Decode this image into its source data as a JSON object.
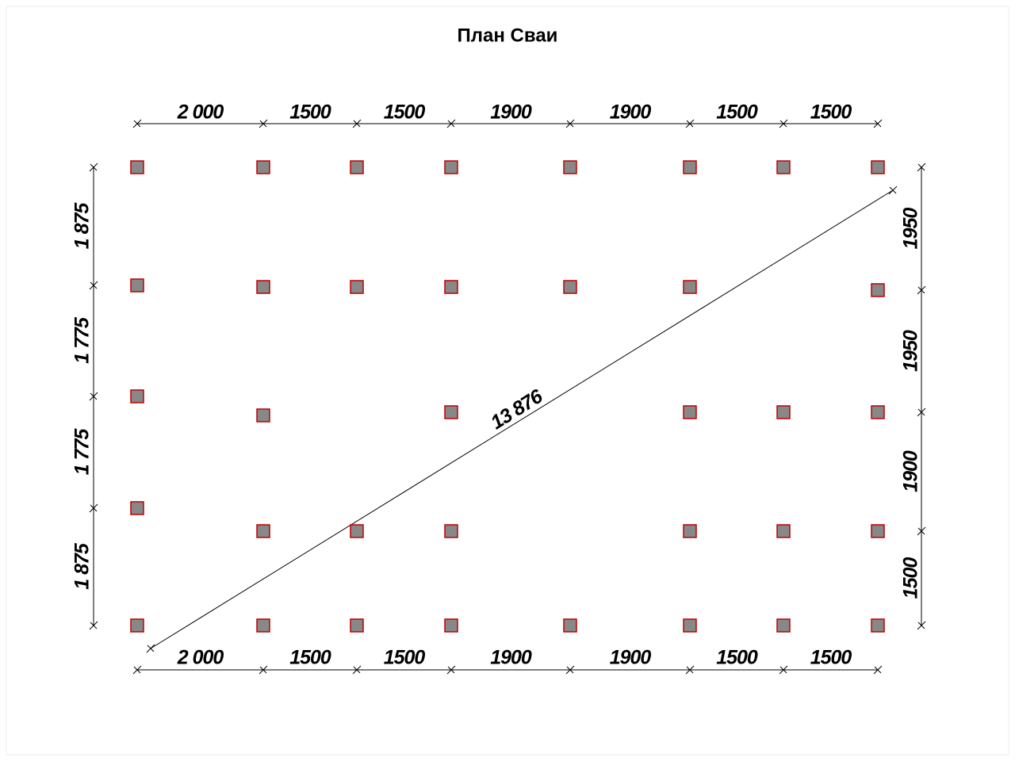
{
  "title": "План Сваи",
  "top_dims": [
    "2 000",
    "1500",
    "1500",
    "1900",
    "1900",
    "1500",
    "1500"
  ],
  "bottom_dims": [
    "2 000",
    "1500",
    "1500",
    "1900",
    "1900",
    "1500",
    "1500"
  ],
  "left_dims": [
    "1 875",
    "1 775",
    "1 775",
    "1 875"
  ],
  "right_dims": [
    "1950",
    "1950",
    "1900",
    "1500"
  ],
  "diagonal": "13 876"
}
